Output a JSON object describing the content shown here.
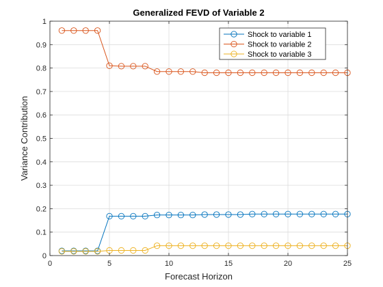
{
  "chart_data": {
    "type": "line",
    "title": "Generalized FEVD of Variable 2",
    "xlabel": "Forecast Horizon",
    "ylabel": "Variance Contribution",
    "xlim": [
      0,
      25
    ],
    "ylim": [
      0,
      1
    ],
    "xticks": [
      "0",
      "5",
      "10",
      "15",
      "20",
      "25"
    ],
    "yticks": [
      "0",
      "0.1",
      "0.2",
      "0.3",
      "0.4",
      "0.5",
      "0.6",
      "0.7",
      "0.8",
      "0.9",
      "1"
    ],
    "grid": true,
    "legend_location": "top-right",
    "x": [
      1,
      2,
      3,
      4,
      5,
      6,
      7,
      8,
      9,
      10,
      11,
      12,
      13,
      14,
      15,
      16,
      17,
      18,
      19,
      20,
      21,
      22,
      23,
      24,
      25
    ],
    "series": [
      {
        "name": "Shock to variable 1",
        "color": "#0072BD",
        "values": [
          0.02,
          0.02,
          0.02,
          0.02,
          0.168,
          0.168,
          0.168,
          0.168,
          0.173,
          0.173,
          0.173,
          0.173,
          0.175,
          0.175,
          0.175,
          0.175,
          0.177,
          0.177,
          0.177,
          0.177,
          0.177,
          0.177,
          0.177,
          0.177,
          0.177
        ]
      },
      {
        "name": "Shock to variable 2",
        "color": "#D95319",
        "values": [
          0.96,
          0.96,
          0.96,
          0.96,
          0.81,
          0.808,
          0.808,
          0.808,
          0.785,
          0.785,
          0.785,
          0.785,
          0.78,
          0.78,
          0.78,
          0.78,
          0.78,
          0.78,
          0.78,
          0.78,
          0.78,
          0.78,
          0.78,
          0.78,
          0.78
        ]
      },
      {
        "name": "Shock to variable 3",
        "color": "#EDB120",
        "values": [
          0.018,
          0.018,
          0.018,
          0.018,
          0.022,
          0.022,
          0.022,
          0.022,
          0.042,
          0.042,
          0.042,
          0.042,
          0.042,
          0.042,
          0.042,
          0.042,
          0.042,
          0.042,
          0.042,
          0.042,
          0.042,
          0.042,
          0.042,
          0.042,
          0.042
        ]
      }
    ]
  }
}
